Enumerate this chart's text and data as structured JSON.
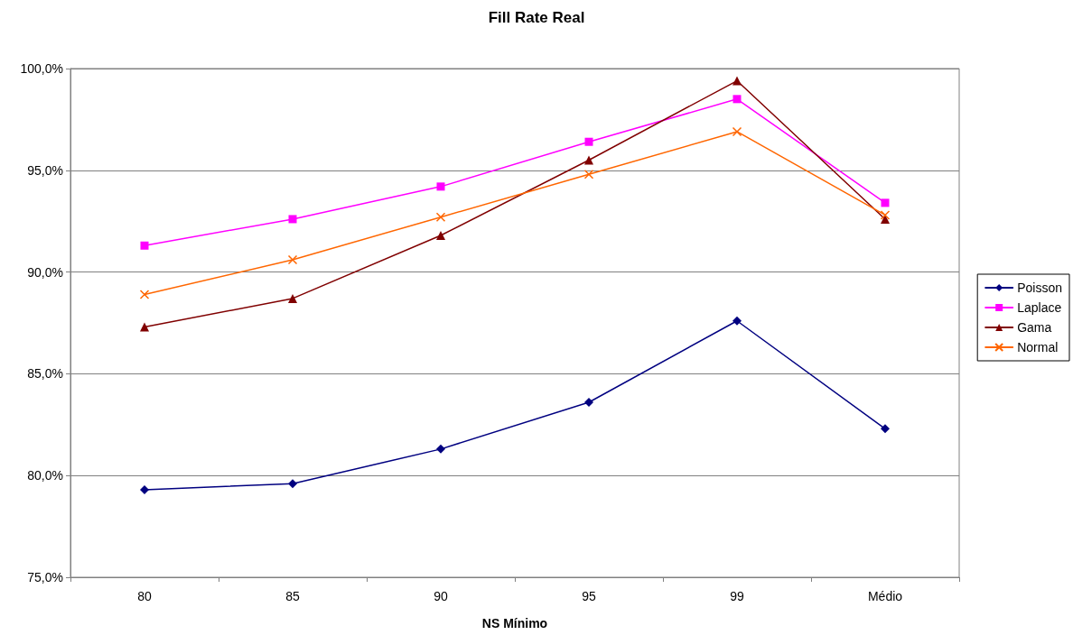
{
  "chart_data": {
    "type": "line",
    "title": "Fill Rate Real",
    "xlabel": "NS Mínimo",
    "categories": [
      "80",
      "85",
      "90",
      "95",
      "99",
      "Médio"
    ],
    "series": [
      {
        "name": "Poisson",
        "color": "#000080",
        "marker": "diamond",
        "values": [
          79.3,
          79.6,
          81.3,
          83.6,
          87.6,
          82.3
        ]
      },
      {
        "name": "Laplace",
        "color": "#ff00ff",
        "marker": "square",
        "values": [
          91.3,
          92.6,
          94.2,
          96.4,
          98.5,
          93.4
        ]
      },
      {
        "name": "Gama",
        "color": "#800000",
        "marker": "triangle",
        "values": [
          87.3,
          88.7,
          91.8,
          95.5,
          99.4,
          92.6
        ]
      },
      {
        "name": "Normal",
        "color": "#ff6600",
        "marker": "cross",
        "values": [
          88.9,
          90.6,
          92.7,
          94.8,
          96.9,
          92.8
        ]
      }
    ],
    "ylim": [
      75,
      100
    ],
    "yticks": [
      {
        "value": 75,
        "label": "75,0%"
      },
      {
        "value": 80,
        "label": "80,0%"
      },
      {
        "value": 85,
        "label": "85,0%"
      },
      {
        "value": 90,
        "label": "90,0%"
      },
      {
        "value": 95,
        "label": "95,0%"
      },
      {
        "value": 100,
        "label": "100,0%"
      }
    ],
    "grid": "y",
    "legend": "right",
    "line_style": "solid"
  }
}
